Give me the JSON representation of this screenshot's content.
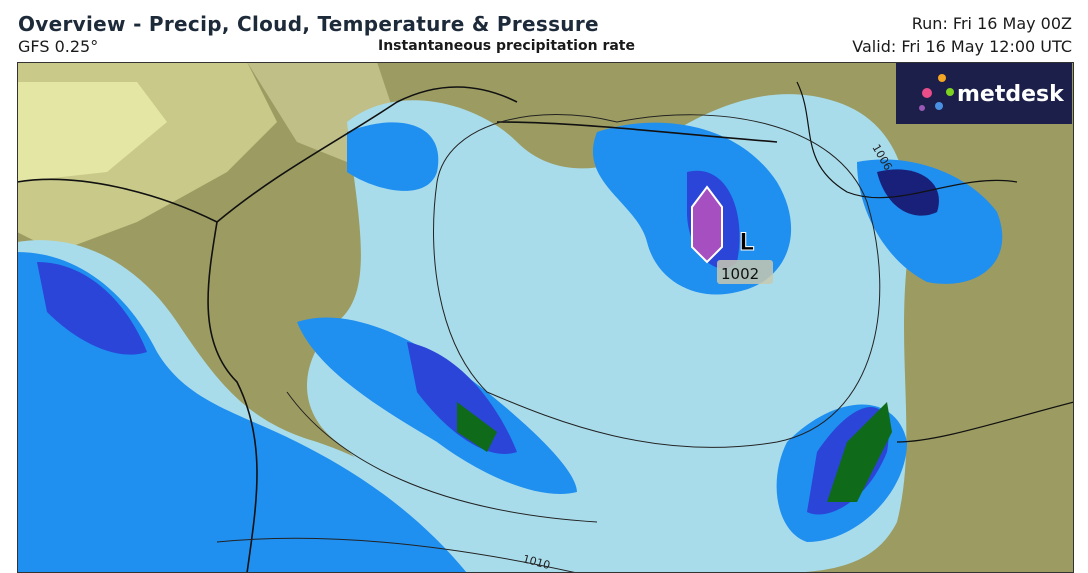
{
  "header": {
    "title": "Overview - Precip, Cloud, Temperature & Pressure",
    "model": "GFS 0.25°",
    "subtitle": "Instantaneous precipitation rate",
    "run": "Run: Fri 16 May 00Z",
    "valid": "Valid: Fri 16 May 12:00 UTC"
  },
  "logo": {
    "text": "metdesk"
  },
  "map": {
    "low": {
      "symbol": "L",
      "pressure": "1002"
    },
    "isobar_labels": [
      "1006",
      "1010"
    ]
  }
}
